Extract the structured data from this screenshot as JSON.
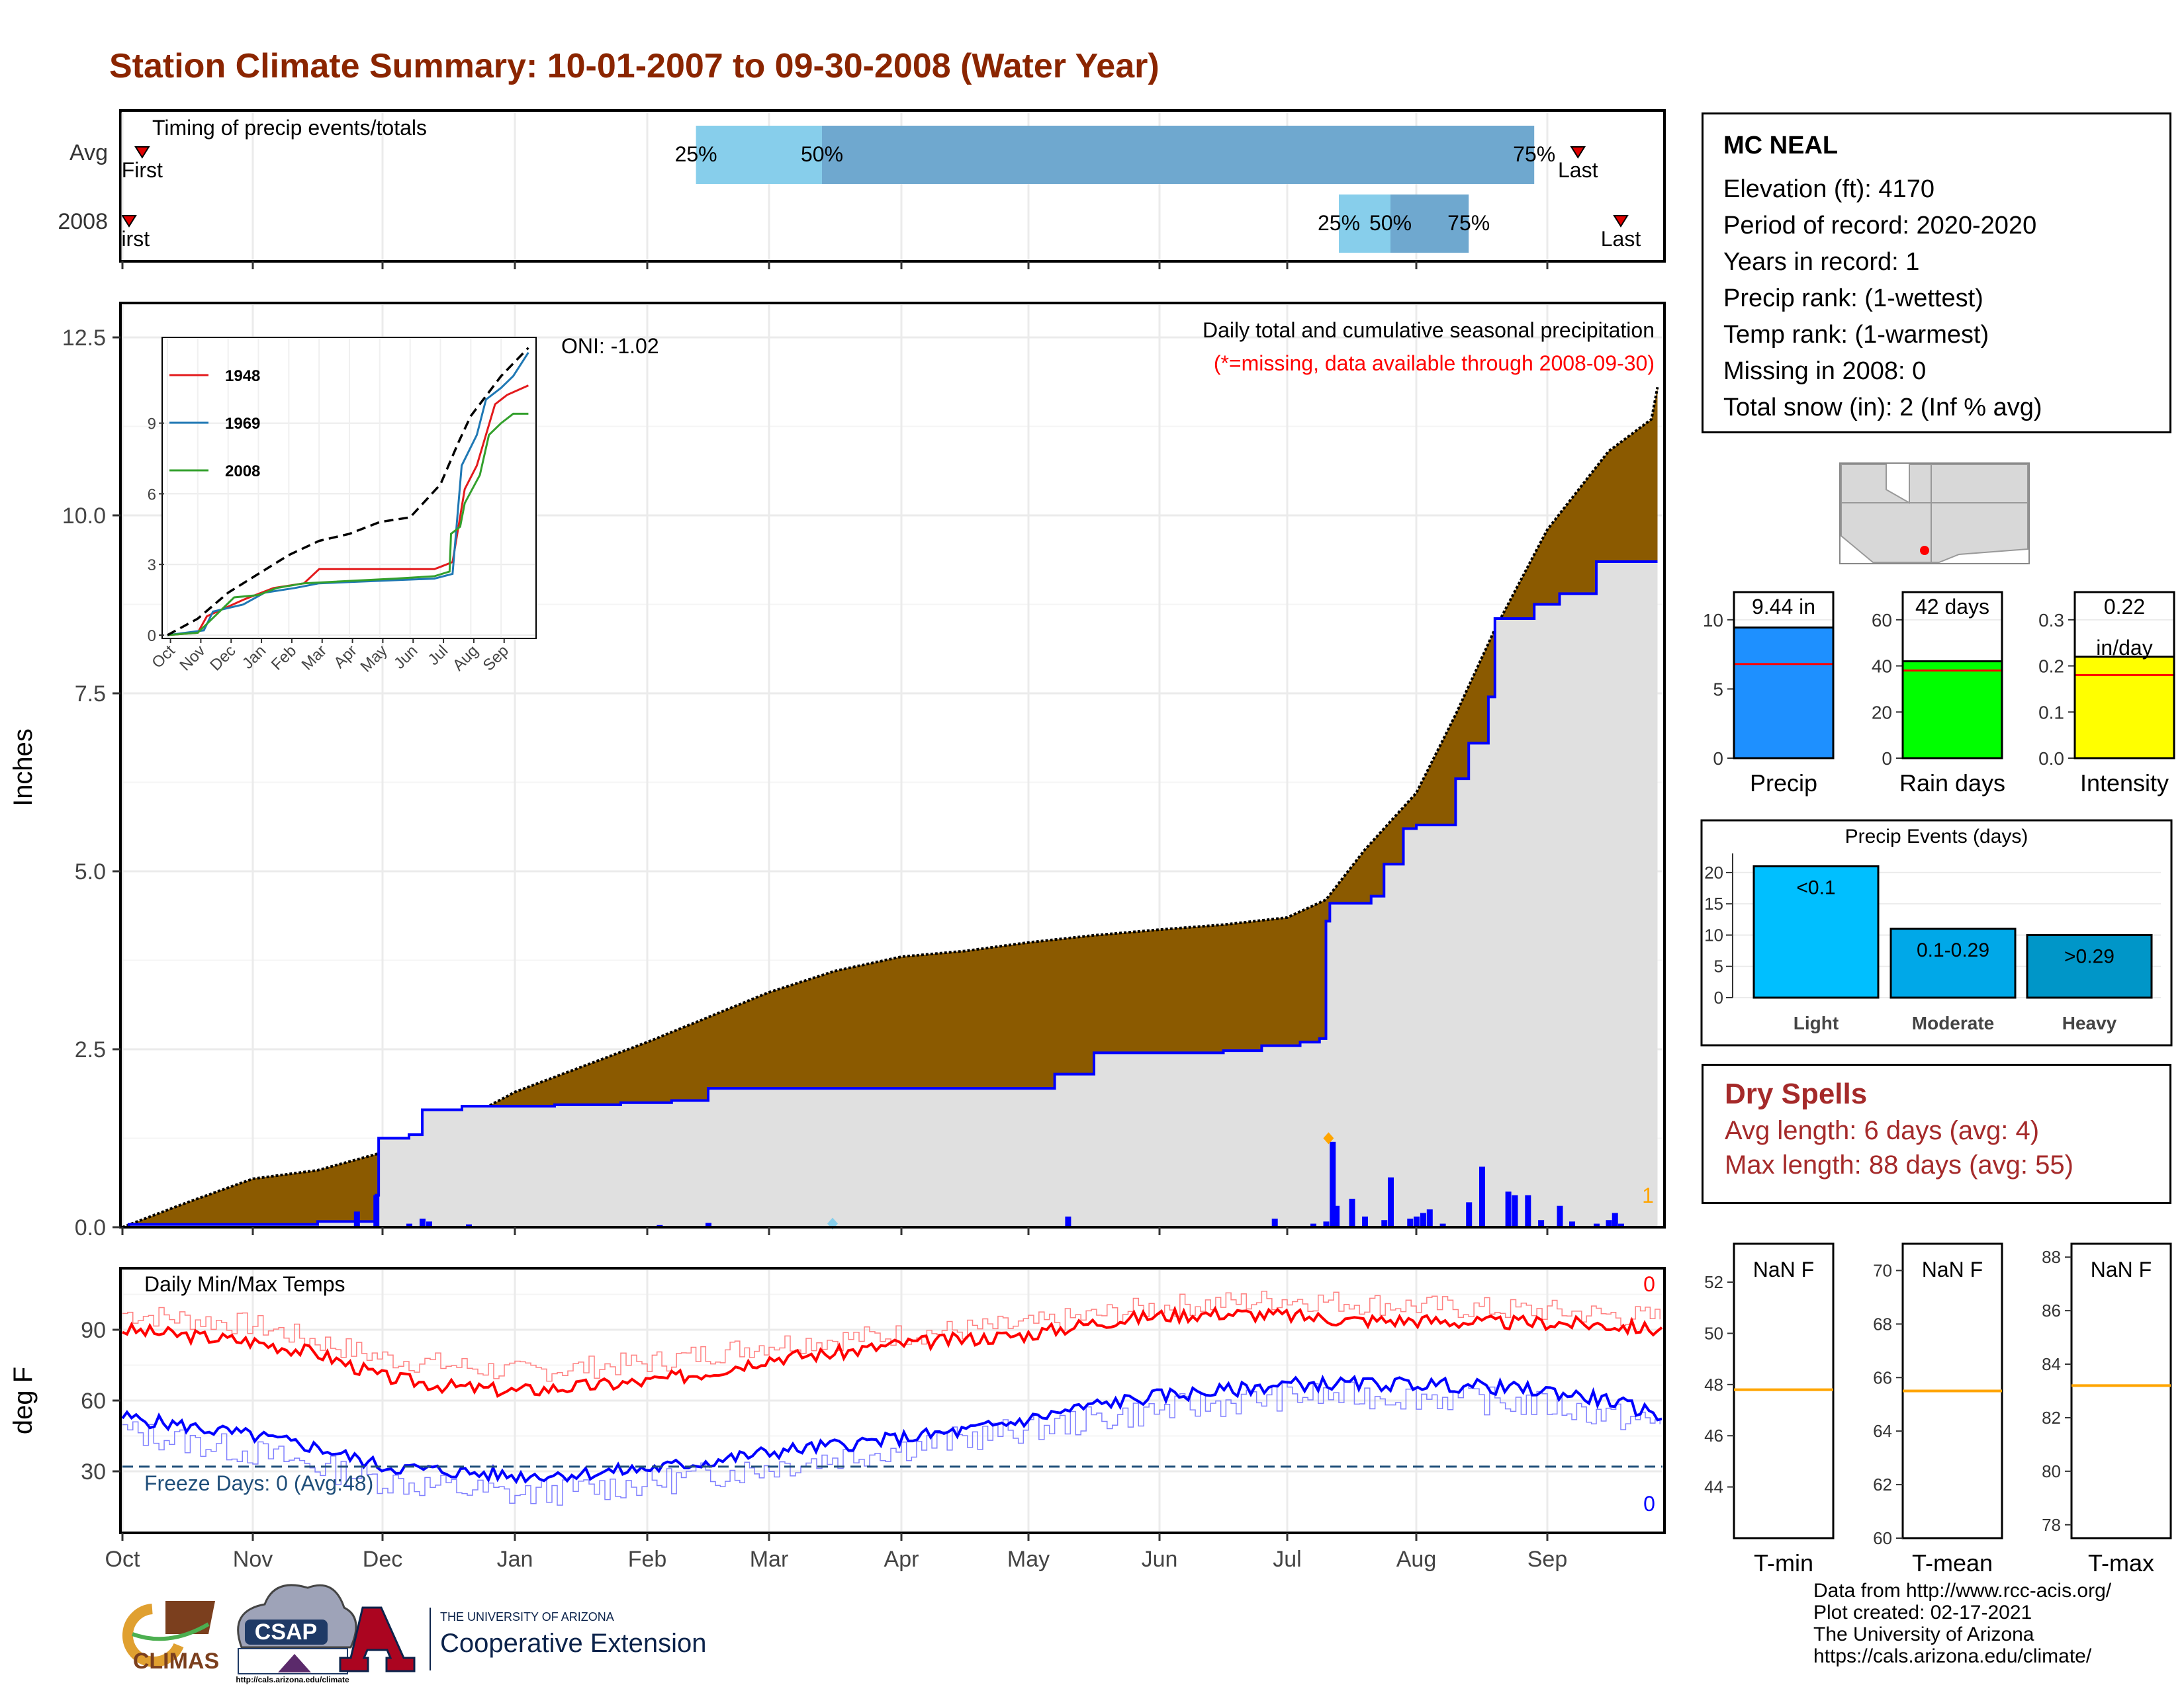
{
  "title": "Station Climate Summary: 10-01-2007 to 09-30-2008 (Water Year)",
  "colors": {
    "title": "#8B2500",
    "cum_current": "#8B5A00",
    "cum_avg_fill": "#E0E0E0",
    "cum_line": "#0000FF",
    "daily_bars": "#0000FF",
    "precip_bar": "#1E90FF",
    "raindays_bar": "#00FF00",
    "intensity_bar": "#FFFF00",
    "events_light": "#00BFFF",
    "events_moderate": "#00A8E8",
    "events_heavy": "#0096C8",
    "tmax": "#FF0000",
    "tmin": "#0000FF",
    "freeze_line": "#1F4E79",
    "dry_spells": "#A52A2A",
    "temp_ref": "#FFA500"
  },
  "timing": {
    "title": "Timing of precip events/totals",
    "rows": [
      {
        "label": "Avg",
        "first_label": "First",
        "last_label": "Last",
        "first": 0.05,
        "last": 11.25,
        "p25": 4.4,
        "p50": 5.4,
        "p75": 10.9
      },
      {
        "label": "2008",
        "first_label": "First",
        "last_label": "Last",
        "first": 0.0,
        "last": 11.6,
        "p25": 9.4,
        "p50": 9.8,
        "p75": 10.4
      }
    ],
    "percent_labels": [
      "25%",
      "50%",
      "75%"
    ]
  },
  "precip_chart": {
    "ylabel": "Inches",
    "yticks": [
      "0.0",
      "2.5",
      "5.0",
      "7.5",
      "10.0",
      "12.5"
    ],
    "ylim": [
      0,
      13
    ],
    "months": [
      "Oct",
      "Nov",
      "Dec",
      "Jan",
      "Feb",
      "Mar",
      "Apr",
      "May",
      "Jun",
      "Jul",
      "Aug",
      "Sep"
    ],
    "annotation": "Daily total and cumulative seasonal precipitation",
    "missing_note": "(*=missing, data available through 2008-09-30)",
    "oni": "ONI: -1.02",
    "corner_count": "1",
    "avg_cum": [
      [
        0,
        0
      ],
      [
        0.5,
        0.35
      ],
      [
        1,
        0.68
      ],
      [
        1.5,
        0.8
      ],
      [
        2,
        1.05
      ],
      [
        2.5,
        1.4
      ],
      [
        3,
        1.9
      ],
      [
        3.5,
        2.25
      ],
      [
        4,
        2.6
      ],
      [
        4.5,
        2.95
      ],
      [
        5,
        3.3
      ],
      [
        5.5,
        3.6
      ],
      [
        6,
        3.8
      ],
      [
        6.5,
        3.88
      ],
      [
        7,
        4.0
      ],
      [
        7.5,
        4.1
      ],
      [
        8,
        4.18
      ],
      [
        8.5,
        4.25
      ],
      [
        9,
        4.35
      ],
      [
        9.3,
        4.6
      ],
      [
        9.6,
        5.3
      ],
      [
        10,
        6.1
      ],
      [
        10.3,
        7.2
      ],
      [
        10.6,
        8.4
      ],
      [
        11,
        9.8
      ],
      [
        11.5,
        10.9
      ],
      [
        11.85,
        11.35
      ],
      [
        11.9,
        11.8
      ]
    ],
    "cur_cum": [
      [
        0,
        0
      ],
      [
        0.05,
        0.04
      ],
      [
        1.5,
        0.08
      ],
      [
        1.95,
        0.45
      ],
      [
        1.97,
        1.25
      ],
      [
        2.2,
        1.3
      ],
      [
        2.3,
        1.65
      ],
      [
        2.6,
        1.7
      ],
      [
        3.3,
        1.72
      ],
      [
        3.8,
        1.75
      ],
      [
        4.2,
        1.78
      ],
      [
        4.5,
        1.95
      ],
      [
        7.2,
        2.15
      ],
      [
        7.5,
        2.45
      ],
      [
        8.5,
        2.48
      ],
      [
        8.8,
        2.55
      ],
      [
        9.1,
        2.6
      ],
      [
        9.25,
        2.65
      ],
      [
        9.3,
        4.3
      ],
      [
        9.33,
        4.55
      ],
      [
        9.65,
        4.65
      ],
      [
        9.75,
        5.1
      ],
      [
        9.9,
        5.6
      ],
      [
        10,
        5.65
      ],
      [
        10.3,
        6.3
      ],
      [
        10.4,
        6.8
      ],
      [
        10.55,
        7.45
      ],
      [
        10.6,
        8.55
      ],
      [
        10.9,
        8.75
      ],
      [
        11.1,
        8.9
      ],
      [
        11.4,
        9.35
      ],
      [
        11.9,
        9.35
      ]
    ],
    "daily": [
      [
        1.8,
        0.22
      ],
      [
        1.95,
        0.45
      ],
      [
        2.2,
        0.05
      ],
      [
        2.3,
        0.12
      ],
      [
        2.35,
        0.08
      ],
      [
        2.65,
        0.04
      ],
      [
        4.1,
        0.03
      ],
      [
        4.5,
        0.06
      ],
      [
        7.3,
        0.15
      ],
      [
        8.9,
        0.12
      ],
      [
        9.2,
        0.05
      ],
      [
        9.3,
        0.08
      ],
      [
        9.35,
        1.2
      ],
      [
        9.38,
        0.3
      ],
      [
        9.5,
        0.4
      ],
      [
        9.6,
        0.15
      ],
      [
        9.75,
        0.1
      ],
      [
        9.8,
        0.7
      ],
      [
        9.95,
        0.12
      ],
      [
        10,
        0.15
      ],
      [
        10.05,
        0.2
      ],
      [
        10.1,
        0.25
      ],
      [
        10.2,
        0.05
      ],
      [
        10.4,
        0.35
      ],
      [
        10.5,
        0.85
      ],
      [
        10.7,
        0.5
      ],
      [
        10.75,
        0.45
      ],
      [
        10.85,
        0.45
      ],
      [
        10.95,
        0.1
      ],
      [
        11.1,
        0.3
      ],
      [
        11.2,
        0.08
      ],
      [
        11.4,
        0.05
      ],
      [
        11.5,
        0.1
      ],
      [
        11.55,
        0.2
      ],
      [
        11.6,
        0.05
      ]
    ],
    "snow_marks": [
      5.48,
      9.32
    ],
    "inset": {
      "yticks": [
        "0",
        "3",
        "6",
        "9"
      ],
      "months": [
        "Oct",
        "Nov",
        "Dec",
        "Jan",
        "Feb",
        "Mar",
        "Apr",
        "May",
        "Jun",
        "Jul",
        "Aug",
        "Sep"
      ],
      "legend": [
        {
          "name": "1948",
          "color": "#E31A1C"
        },
        {
          "name": "1969",
          "color": "#1F78B4"
        },
        {
          "name": "2008",
          "color": "#33A02C"
        }
      ],
      "avg": [
        [
          0,
          0
        ],
        [
          1,
          0.7
        ],
        [
          2,
          1.8
        ],
        [
          3,
          2.6
        ],
        [
          4,
          3.4
        ],
        [
          5,
          4.0
        ],
        [
          6,
          4.3
        ],
        [
          7,
          4.8
        ],
        [
          8,
          5.0
        ],
        [
          9,
          6.4
        ],
        [
          9.6,
          8.2
        ],
        [
          10,
          9.3
        ],
        [
          11,
          11.0
        ],
        [
          11.9,
          12.2
        ]
      ],
      "s1948": [
        [
          0,
          0
        ],
        [
          1,
          0.1
        ],
        [
          1.3,
          0.8
        ],
        [
          2.5,
          1.5
        ],
        [
          3.5,
          2.0
        ],
        [
          4.5,
          2.2
        ],
        [
          5,
          2.8
        ],
        [
          8.8,
          2.8
        ],
        [
          9,
          2.9
        ],
        [
          9.4,
          3.1
        ],
        [
          9.8,
          6.2
        ],
        [
          10.2,
          7.2
        ],
        [
          10.8,
          9.8
        ],
        [
          11.2,
          10.2
        ],
        [
          11.9,
          10.6
        ]
      ],
      "s1969": [
        [
          0,
          0
        ],
        [
          1.2,
          0.2
        ],
        [
          1.5,
          1.0
        ],
        [
          2.5,
          1.3
        ],
        [
          3.2,
          1.8
        ],
        [
          4.2,
          2.0
        ],
        [
          5,
          2.2
        ],
        [
          8.8,
          2.4
        ],
        [
          9.4,
          2.6
        ],
        [
          9.7,
          7.2
        ],
        [
          10.2,
          8.5
        ],
        [
          10.5,
          10.0
        ],
        [
          11,
          10.5
        ],
        [
          11.4,
          11.0
        ],
        [
          11.9,
          12.0
        ]
      ],
      "s2008": [
        [
          0,
          0
        ],
        [
          1,
          0.1
        ],
        [
          1.4,
          0.6
        ],
        [
          2.2,
          1.6
        ],
        [
          3,
          1.7
        ],
        [
          3.6,
          2.0
        ],
        [
          4.5,
          2.2
        ],
        [
          7.5,
          2.4
        ],
        [
          8.8,
          2.5
        ],
        [
          9.3,
          2.7
        ],
        [
          9.35,
          4.3
        ],
        [
          9.65,
          4.6
        ],
        [
          9.8,
          5.6
        ],
        [
          10.3,
          6.8
        ],
        [
          10.6,
          8.5
        ],
        [
          11,
          9.0
        ],
        [
          11.4,
          9.4
        ],
        [
          11.9,
          9.4
        ]
      ]
    }
  },
  "summary_bars": [
    {
      "label": "Precip",
      "value": 9.44,
      "top_label": "9.44 in",
      "avg": 6.8,
      "ymax": 12,
      "yticks": [
        "0",
        "5",
        "10"
      ],
      "tickvals": [
        0,
        5,
        10
      ],
      "color": "#1E90FF"
    },
    {
      "label": "Rain days",
      "value": 42,
      "top_label": "42 days",
      "avg": 38,
      "ymax": 72,
      "yticks": [
        "0",
        "20",
        "40",
        "60"
      ],
      "tickvals": [
        0,
        20,
        40,
        60
      ],
      "color": "#00FF00"
    },
    {
      "label": "Intensity",
      "value": 0.22,
      "top_label": "0.22",
      "top_label2": "in/day",
      "avg": 0.18,
      "ymax": 0.36,
      "yticks": [
        "0.0",
        "0.1",
        "0.2",
        "0.3"
      ],
      "tickvals": [
        0,
        0.1,
        0.2,
        0.3
      ],
      "color": "#FFFF00"
    }
  ],
  "events": {
    "title": "Precip Events (days)",
    "yticks": [
      "0",
      "5",
      "10",
      "15",
      "20"
    ],
    "ymax": 22,
    "bars": [
      {
        "label": "Light",
        "range": "<0.1",
        "value": 21,
        "color": "#00BFFF"
      },
      {
        "label": "Moderate",
        "range": "0.1-0.29",
        "value": 11,
        "color": "#00A8E8"
      },
      {
        "label": "Heavy",
        "range": ">0.29",
        "value": 10,
        "color": "#0096C8"
      }
    ]
  },
  "station": {
    "name": "MC NEAL",
    "lines": [
      "Elevation (ft): 4170",
      "Period of record: 2020-2020",
      "Years in record: 1",
      "Precip rank:  (1-wettest)",
      "Temp rank:  (1-warmest)",
      "Missing in 2008: 0",
      "Total snow (in): 2 (Inf % avg)"
    ]
  },
  "dry_spells": {
    "title": "Dry Spells",
    "avg_length": "Avg length: 6 days (avg: 4)",
    "max_length": "Max length: 88 days (avg: 55)"
  },
  "temp_chart": {
    "ylabel": "deg F",
    "yticks": [
      "30",
      "60",
      "90"
    ],
    "title": "Daily Min/Max Temps",
    "freeze_label": "Freeze Days: 0 (Avg:48)",
    "max_count": "0",
    "min_count": "0",
    "months": [
      "Oct",
      "Nov",
      "Dec",
      "Jan",
      "Feb",
      "Mar",
      "Apr",
      "May",
      "Jun",
      "Jul",
      "Aug",
      "Sep"
    ],
    "freeze_temp": 32,
    "tmax_avg": [
      [
        0,
        90
      ],
      [
        1,
        85
      ],
      [
        1.5,
        80
      ],
      [
        2,
        70
      ],
      [
        2.5,
        66
      ],
      [
        3,
        64
      ],
      [
        3.5,
        66
      ],
      [
        4,
        68
      ],
      [
        4.5,
        72
      ],
      [
        5,
        78
      ],
      [
        5.5,
        80
      ],
      [
        6,
        84
      ],
      [
        6.5,
        86
      ],
      [
        7,
        88
      ],
      [
        7.5,
        93
      ],
      [
        8,
        96
      ],
      [
        8.5,
        97
      ],
      [
        9,
        96
      ],
      [
        9.5,
        94
      ],
      [
        10,
        94
      ],
      [
        10.5,
        93
      ],
      [
        11,
        93
      ],
      [
        11.5,
        92
      ],
      [
        11.9,
        90
      ]
    ],
    "tmin_avg": [
      [
        0,
        53
      ],
      [
        1,
        45
      ],
      [
        1.5,
        40
      ],
      [
        2,
        32
      ],
      [
        2.5,
        30
      ],
      [
        3,
        28
      ],
      [
        3.5,
        29
      ],
      [
        4,
        31
      ],
      [
        4.5,
        34
      ],
      [
        5,
        38
      ],
      [
        5.5,
        41
      ],
      [
        6,
        44
      ],
      [
        6.5,
        47
      ],
      [
        7,
        52
      ],
      [
        7.5,
        58
      ],
      [
        8,
        62
      ],
      [
        8.5,
        64
      ],
      [
        9,
        67
      ],
      [
        9.5,
        67
      ],
      [
        10,
        67
      ],
      [
        10.5,
        66
      ],
      [
        11,
        64
      ],
      [
        11.5,
        60
      ],
      [
        11.9,
        54
      ]
    ],
    "tmax_rec": [
      [
        0,
        97
      ],
      [
        1,
        92
      ],
      [
        2,
        78
      ],
      [
        3,
        72
      ],
      [
        4,
        76
      ],
      [
        5,
        84
      ],
      [
        6,
        88
      ],
      [
        7,
        92
      ],
      [
        8,
        100
      ],
      [
        9,
        103
      ],
      [
        10,
        100
      ],
      [
        11,
        98
      ],
      [
        11.9,
        95
      ]
    ],
    "tmin_rec": [
      [
        0,
        47
      ],
      [
        1,
        38
      ],
      [
        2,
        26
      ],
      [
        3,
        20
      ],
      [
        4,
        25
      ],
      [
        5,
        32
      ],
      [
        6,
        40
      ],
      [
        7,
        48
      ],
      [
        8,
        56
      ],
      [
        9,
        62
      ],
      [
        10,
        62
      ],
      [
        11,
        58
      ],
      [
        11.9,
        50
      ]
    ]
  },
  "temp_boxes": [
    {
      "label": "T-min",
      "value_label": "NaN F",
      "ref": 47.8,
      "ymin": 42,
      "ymax": 53.5,
      "yticks": [
        "44",
        "46",
        "48",
        "50",
        "52"
      ],
      "tickvals": [
        44,
        46,
        48,
        50,
        52
      ]
    },
    {
      "label": "T-mean",
      "value_label": "NaN F",
      "ref": 65.5,
      "ymin": 60,
      "ymax": 71,
      "yticks": [
        "60",
        "62",
        "64",
        "66",
        "68",
        "70"
      ],
      "tickvals": [
        60,
        62,
        64,
        66,
        68,
        70
      ]
    },
    {
      "label": "T-max",
      "value_label": "NaN F",
      "ref": 83.2,
      "ymin": 77.5,
      "ymax": 88.5,
      "yticks": [
        "78",
        "80",
        "82",
        "84",
        "86",
        "88"
      ],
      "tickvals": [
        78,
        80,
        82,
        84,
        86,
        88
      ]
    }
  ],
  "logos": {
    "climas": "CLIMAS",
    "csap": "CSAP",
    "csap_url": "http://cals.arizona.edu/climate",
    "ua_small": "THE UNIVERSITY OF ARIZONA",
    "ua_big": "Cooperative Extension"
  },
  "credits": [
    "Data from http://www.rcc-acis.org/",
    "Plot created: 02-17-2021",
    "The University of Arizona",
    "https://cals.arizona.edu/climate/"
  ]
}
